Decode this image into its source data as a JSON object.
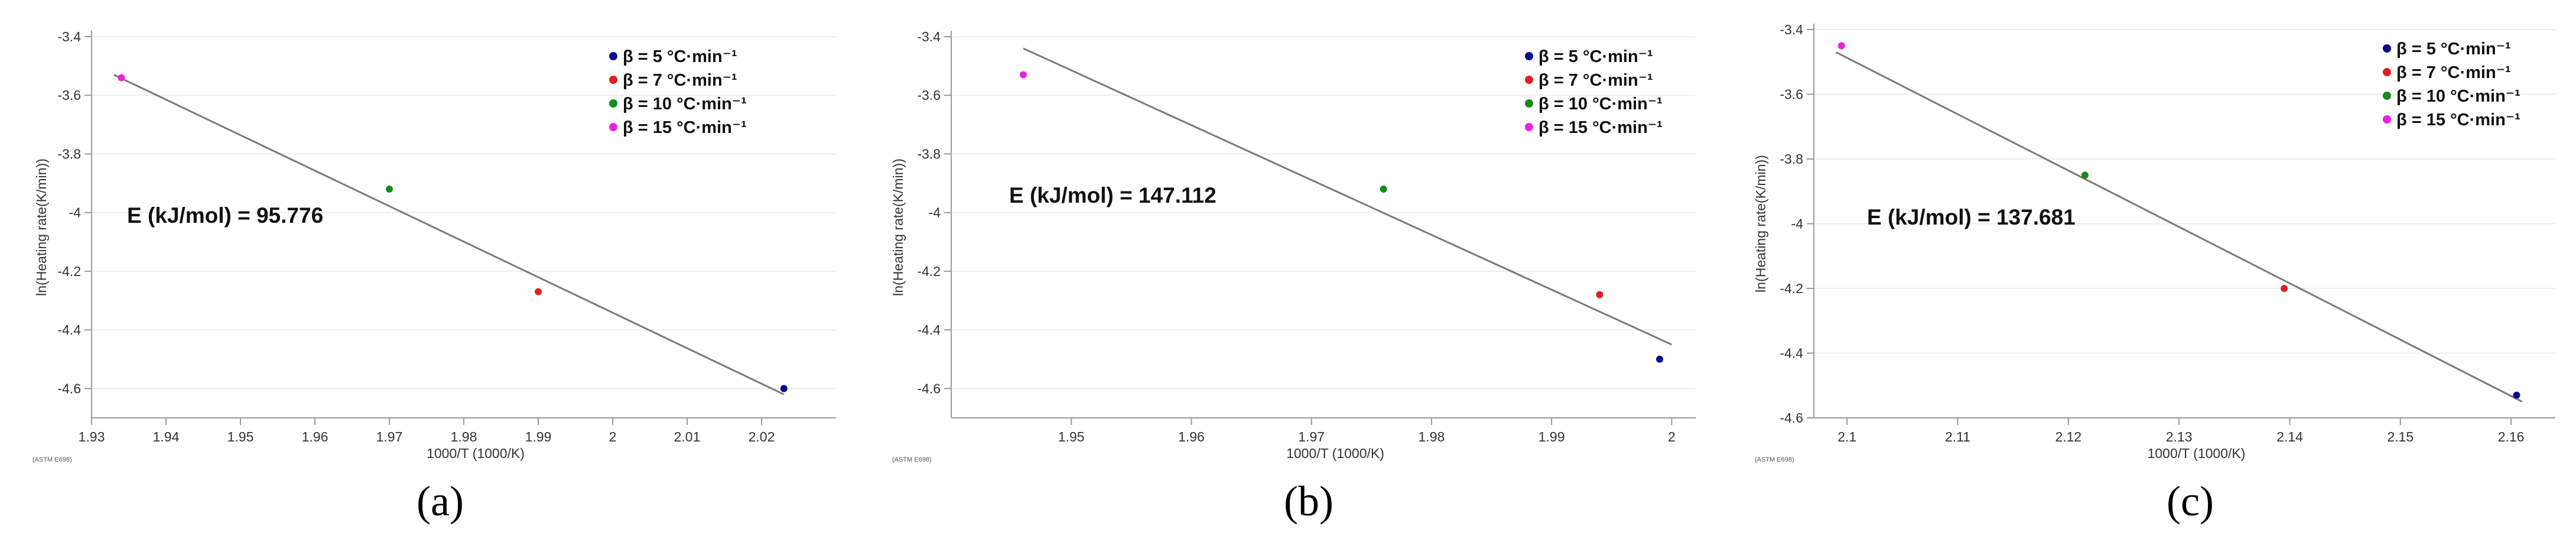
{
  "colors": {
    "series": [
      "#0a0a8c",
      "#e02020",
      "#1a8a1a",
      "#ee22dd"
    ],
    "fit_line": "#7a7a7a",
    "axis": "#9a9a9a",
    "grid": "#eeeeee",
    "text": "#333333"
  },
  "legend_labels": [
    "β = 5 °C·min⁻¹",
    "β = 7 °C·min⁻¹",
    "β = 10 °C·min⁻¹",
    "β = 15 °C·min⁻¹"
  ],
  "chart_data": [
    {
      "type": "scatter",
      "panel_label": "(a)",
      "xlabel": "1000/T (1000/K)",
      "ylabel": "ln(Heating rate(K/min))",
      "watermark": "(ASTM E698)",
      "xlim": [
        1.93,
        2.03
      ],
      "ylim": [
        -4.7,
        -3.4
      ],
      "xticks": [
        1.93,
        1.94,
        1.95,
        1.96,
        1.97,
        1.98,
        1.99,
        2,
        2.01,
        2.02
      ],
      "xtick_labels": [
        "1.93",
        "1.94",
        "1.95",
        "1.96",
        "1.97",
        "1.98",
        "1.99",
        "2",
        "2.01",
        "2.02"
      ],
      "yticks": [
        -3.4,
        -3.6,
        -3.8,
        -4,
        -4.2,
        -4.4,
        -4.6
      ],
      "ytick_labels": [
        "-3.4",
        "-3.6",
        "-3.8",
        "-4",
        "-4.2",
        "-4.4",
        "-4.6"
      ],
      "annotation": "E (kJ/mol) = 95.776",
      "legend_position": "top-right",
      "grid": "horizontal",
      "fit_line": {
        "x": [
          1.933,
          2.023
        ],
        "y": [
          -3.53,
          -4.62
        ]
      },
      "series": [
        {
          "name": "β = 5 °C·min⁻¹",
          "x": [
            2.023
          ],
          "y": [
            -4.6
          ]
        },
        {
          "name": "β = 7 °C·min⁻¹",
          "x": [
            1.99
          ],
          "y": [
            -4.27
          ]
        },
        {
          "name": "β = 10 °C·min⁻¹",
          "x": [
            1.97
          ],
          "y": [
            -3.92
          ]
        },
        {
          "name": "β = 15 °C·min⁻¹",
          "x": [
            1.934
          ],
          "y": [
            -3.54
          ]
        }
      ]
    },
    {
      "type": "scatter",
      "panel_label": "(b)",
      "xlabel": "1000/T (1000/K)",
      "ylabel": "ln(Heating rate(K/min))",
      "watermark": "(ASTM E698)",
      "xlim": [
        1.94,
        2.002
      ],
      "ylim": [
        -4.7,
        -3.4
      ],
      "xticks": [
        1.95,
        1.96,
        1.97,
        1.98,
        1.99,
        2
      ],
      "xtick_labels": [
        "1.95",
        "1.96",
        "1.97",
        "1.98",
        "1.99",
        "2"
      ],
      "yticks": [
        -3.4,
        -3.6,
        -3.8,
        -4,
        -4.2,
        -4.4,
        -4.6
      ],
      "ytick_labels": [
        "-3.4",
        "-3.6",
        "-3.8",
        "-4",
        "-4.2",
        "-4.4",
        "-4.6"
      ],
      "annotation": "E (kJ/mol) = 147.112",
      "legend_position": "top-right",
      "grid": "horizontal",
      "fit_line": {
        "x": [
          1.946,
          2.0
        ],
        "y": [
          -3.44,
          -4.45
        ]
      },
      "series": [
        {
          "name": "β = 5 °C·min⁻¹",
          "x": [
            1.999
          ],
          "y": [
            -4.5
          ]
        },
        {
          "name": "β = 7 °C·min⁻¹",
          "x": [
            1.994
          ],
          "y": [
            -4.28
          ]
        },
        {
          "name": "β = 10 °C·min⁻¹",
          "x": [
            1.976
          ],
          "y": [
            -3.92
          ]
        },
        {
          "name": "β = 15 °C·min⁻¹",
          "x": [
            1.946
          ],
          "y": [
            -3.53
          ]
        }
      ]
    },
    {
      "type": "scatter",
      "panel_label": "(c)",
      "xlabel": "1000/T (1000/K)",
      "ylabel": "ln(Heating rate(K/min))",
      "watermark": "(ASTM E698)",
      "xlim": [
        2.097,
        2.164
      ],
      "ylim": [
        -4.6,
        -3.4
      ],
      "xticks": [
        2.1,
        2.11,
        2.12,
        2.13,
        2.14,
        2.15,
        2.16
      ],
      "xtick_labels": [
        "2.1",
        "2.11",
        "2.12",
        "2.13",
        "2.14",
        "2.15",
        "2.16"
      ],
      "yticks": [
        -3.4,
        -3.6,
        -3.8,
        -4,
        -4.2,
        -4.4,
        -4.6
      ],
      "ytick_labels": [
        "-3.4",
        "-3.6",
        "-3.8",
        "-4",
        "-4.2",
        "-4.4",
        "-4.6"
      ],
      "annotation": "E (kJ/mol) = 137.681",
      "legend_position": "top-right",
      "grid": "horizontal",
      "fit_line": {
        "x": [
          2.099,
          2.161
        ],
        "y": [
          -3.47,
          -4.55
        ]
      },
      "series": [
        {
          "name": "β = 5 °C·min⁻¹",
          "x": [
            2.1605
          ],
          "y": [
            -4.53
          ]
        },
        {
          "name": "β = 7 °C·min⁻¹",
          "x": [
            2.1395
          ],
          "y": [
            -4.2
          ]
        },
        {
          "name": "β = 10 °C·min⁻¹",
          "x": [
            2.1215
          ],
          "y": [
            -3.85
          ]
        },
        {
          "name": "β = 15 °C·min⁻¹",
          "x": [
            2.0995
          ],
          "y": [
            -3.45
          ]
        }
      ]
    }
  ]
}
